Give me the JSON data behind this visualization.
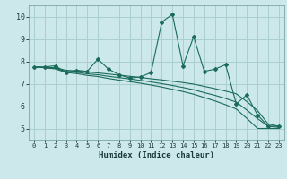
{
  "xlabel": "Humidex (Indice chaleur)",
  "xlim": [
    -0.5,
    23.5
  ],
  "ylim": [
    4.5,
    10.5
  ],
  "xticks": [
    0,
    1,
    2,
    3,
    4,
    5,
    6,
    7,
    8,
    9,
    10,
    11,
    12,
    13,
    14,
    15,
    16,
    17,
    18,
    19,
    20,
    21,
    22,
    23
  ],
  "yticks": [
    5,
    6,
    7,
    8,
    9,
    10
  ],
  "bg_color": "#cce8ea",
  "grid_color": "#aacfcf",
  "line_color": "#1a6b5a",
  "line1_x": [
    0,
    1,
    2,
    3,
    4,
    5,
    6,
    7,
    8,
    9,
    10,
    11,
    12,
    13,
    14,
    15,
    16,
    17,
    18,
    19,
    20,
    21,
    22,
    23
  ],
  "line1_y": [
    7.75,
    7.75,
    7.8,
    7.5,
    7.6,
    7.55,
    8.1,
    7.65,
    7.4,
    7.25,
    7.3,
    7.5,
    9.75,
    10.1,
    7.8,
    9.1,
    7.55,
    7.65,
    7.85,
    6.1,
    6.5,
    5.6,
    5.1,
    5.1
  ],
  "line2_x": [
    0,
    1,
    2,
    3,
    4,
    5,
    6,
    7,
    8,
    9,
    10,
    11,
    12,
    13,
    14,
    15,
    16,
    17,
    18,
    19,
    20,
    21,
    22,
    23
  ],
  "line2_y": [
    7.75,
    7.73,
    7.71,
    7.6,
    7.57,
    7.52,
    7.48,
    7.43,
    7.38,
    7.33,
    7.28,
    7.22,
    7.17,
    7.11,
    7.05,
    6.98,
    6.88,
    6.78,
    6.67,
    6.55,
    6.2,
    5.8,
    5.2,
    5.1
  ],
  "line3_x": [
    0,
    1,
    2,
    3,
    4,
    5,
    6,
    7,
    8,
    9,
    10,
    11,
    12,
    13,
    14,
    15,
    16,
    17,
    18,
    19,
    20,
    21,
    22,
    23
  ],
  "line3_y": [
    7.75,
    7.72,
    7.68,
    7.55,
    7.51,
    7.44,
    7.4,
    7.33,
    7.27,
    7.21,
    7.15,
    7.08,
    7.0,
    6.92,
    6.83,
    6.73,
    6.6,
    6.48,
    6.34,
    6.18,
    5.82,
    5.44,
    5.1,
    5.05
  ],
  "line4_x": [
    0,
    1,
    2,
    3,
    4,
    5,
    6,
    7,
    8,
    9,
    10,
    11,
    12,
    13,
    14,
    15,
    16,
    17,
    18,
    19,
    20,
    21,
    22,
    23
  ],
  "line4_y": [
    7.75,
    7.71,
    7.66,
    7.5,
    7.45,
    7.37,
    7.32,
    7.23,
    7.16,
    7.09,
    7.02,
    6.94,
    6.85,
    6.75,
    6.65,
    6.53,
    6.38,
    6.23,
    6.06,
    5.87,
    5.45,
    5.0,
    5.0,
    5.0
  ]
}
